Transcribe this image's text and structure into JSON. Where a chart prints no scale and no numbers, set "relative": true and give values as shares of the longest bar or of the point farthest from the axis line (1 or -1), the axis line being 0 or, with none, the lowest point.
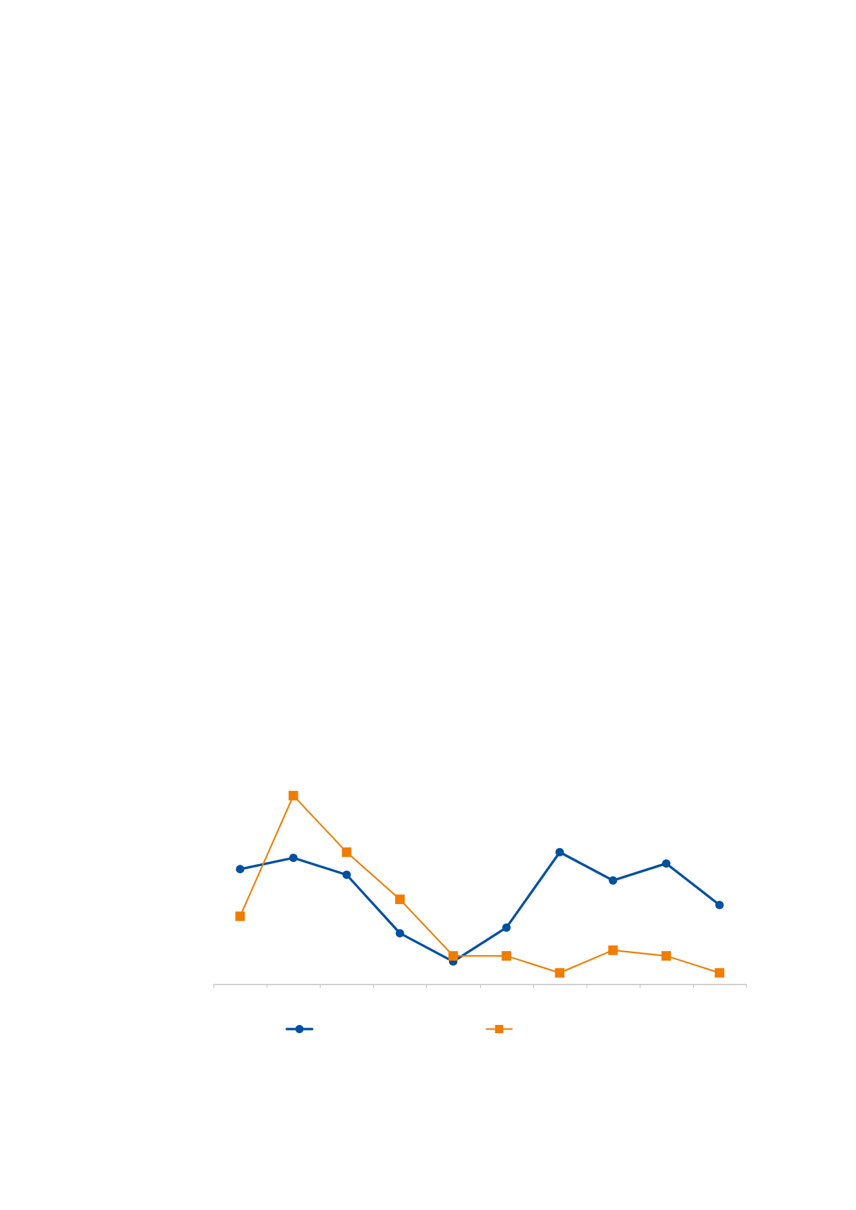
{
  "chart_data": {
    "type": "line",
    "relative": true,
    "categories": [
      null,
      null,
      null,
      null,
      null,
      null,
      null,
      null,
      null,
      null
    ],
    "series": [
      {
        "color": "#0050a0",
        "marker": "circle",
        "values": [
          0.61,
          0.67,
          0.58,
          0.27,
          0.12,
          0.3,
          0.7,
          0.55,
          0.64,
          0.42
        ]
      },
      {
        "color": "#ef7d00",
        "marker": "square",
        "values": [
          0.36,
          1,
          0.7,
          0.45,
          0.15,
          0.15,
          0.06,
          0.18,
          0.15,
          0.06
        ]
      }
    ]
  }
}
